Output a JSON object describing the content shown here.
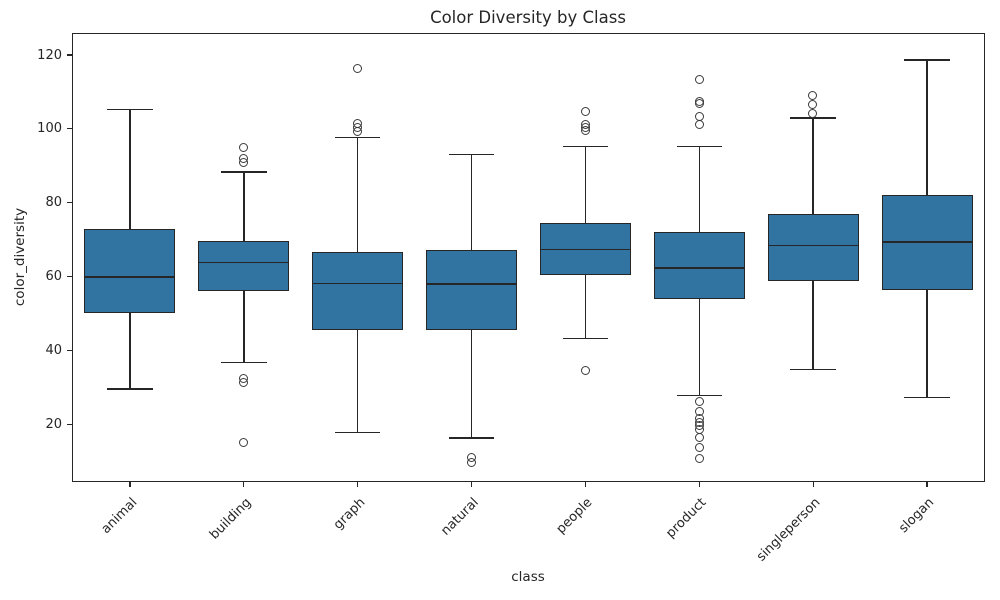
{
  "title": "Color Diversity by Class",
  "chart_data": {
    "type": "boxplot",
    "title": "Color Diversity by Class",
    "xlabel": "class",
    "ylabel": "color_diversity",
    "ylim": [
      4.6,
      125.7
    ],
    "yticks": [
      20,
      40,
      60,
      80,
      100,
      120
    ],
    "grid": false,
    "legend": "none",
    "box_width_fraction": 0.8,
    "cap_width_fraction": 0.4,
    "categories": [
      "animal",
      "building",
      "graph",
      "natural",
      "people",
      "product",
      "singleperson",
      "slogan"
    ],
    "boxes": [
      {
        "category": "animal",
        "whisker_low": 29.5,
        "q1": 50.1,
        "median": 59.9,
        "q3": 72.9,
        "whisker_high": 105.3,
        "outliers": []
      },
      {
        "category": "building",
        "whisker_low": 36.7,
        "q1": 56.2,
        "median": 63.8,
        "q3": 69.7,
        "whisker_high": 88.3,
        "outliers": [
          95.0,
          92.0,
          90.8,
          32.3,
          31.1,
          14.9
        ]
      },
      {
        "category": "graph",
        "whisker_low": 17.8,
        "q1": 45.6,
        "median": 58.1,
        "q3": 66.6,
        "whisker_high": 97.7,
        "outliers": [
          116.3,
          101.3,
          100.4,
          99.2
        ]
      },
      {
        "category": "natural",
        "whisker_low": 16.2,
        "q1": 45.5,
        "median": 58.0,
        "q3": 67.1,
        "whisker_high": 93.0,
        "outliers": [
          10.8,
          9.5
        ]
      },
      {
        "category": "people",
        "whisker_low": 43.2,
        "q1": 60.3,
        "median": 67.3,
        "q3": 74.4,
        "whisker_high": 95.2,
        "outliers": [
          104.6,
          101.2,
          100.4,
          99.6,
          34.5
        ]
      },
      {
        "category": "product",
        "whisker_low": 27.8,
        "q1": 53.9,
        "median": 62.4,
        "q3": 72.1,
        "whisker_high": 95.2,
        "outliers": [
          113.2,
          107.3,
          106.7,
          103.2,
          101.1,
          26.0,
          23.4,
          21.4,
          20.5,
          19.6,
          18.5,
          16.4,
          13.7,
          10.6
        ]
      },
      {
        "category": "singleperson",
        "whisker_low": 34.8,
        "q1": 58.8,
        "median": 68.4,
        "q3": 76.8,
        "whisker_high": 102.9,
        "outliers": [
          108.9,
          106.4,
          104.2
        ]
      },
      {
        "category": "slogan",
        "whisker_low": 27.2,
        "q1": 56.3,
        "median": 69.4,
        "q3": 82.2,
        "whisker_high": 118.7,
        "outliers": []
      }
    ],
    "colors": {
      "box_fill": "#3274a1",
      "line": "#262626",
      "flier_edge": "#3a3a3a",
      "spine": "#262626",
      "background": "#ffffff",
      "text": "#262626"
    }
  }
}
